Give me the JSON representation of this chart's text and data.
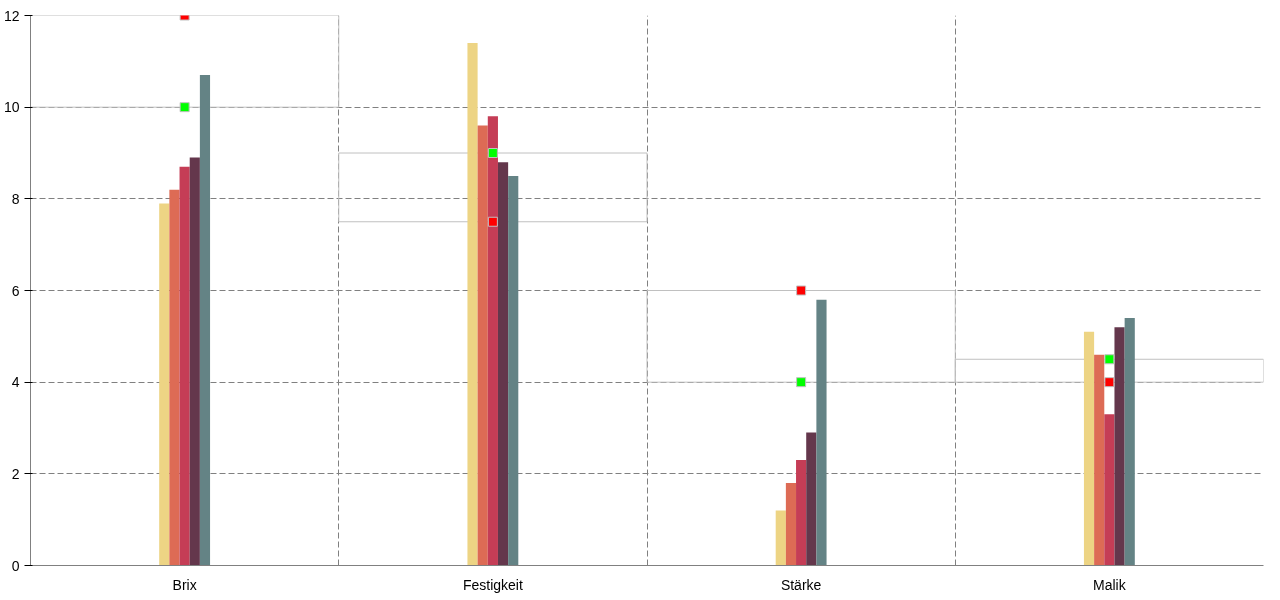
{
  "chart_data": {
    "type": "bar",
    "categories": [
      "Brix",
      "Festigkeit",
      "Stärke",
      "Malik"
    ],
    "series": [
      {
        "color": "#edd484",
        "values": [
          7.9,
          11.4,
          1.2,
          5.1
        ]
      },
      {
        "color": "#dd6b55",
        "values": [
          8.2,
          9.6,
          1.8,
          4.6
        ]
      },
      {
        "color": "#c53d56",
        "values": [
          8.7,
          9.8,
          2.3,
          3.3
        ]
      },
      {
        "color": "#64374c",
        "values": [
          8.9,
          8.8,
          2.9,
          5.2
        ]
      },
      {
        "color": "#648385",
        "values": [
          10.7,
          8.5,
          5.8,
          5.4
        ]
      },
      {
        "type": "scatter",
        "color": "#00ff00",
        "values": [
          10,
          9,
          4,
          4.5
        ]
      },
      {
        "type": "scatter",
        "color": "#ff0000",
        "values": [
          12,
          7.5,
          6,
          4
        ]
      }
    ],
    "marker": "square",
    "ylim": [
      0,
      12
    ],
    "yticks": [
      0,
      2,
      4,
      6,
      8,
      10,
      12
    ],
    "grid": true
  }
}
